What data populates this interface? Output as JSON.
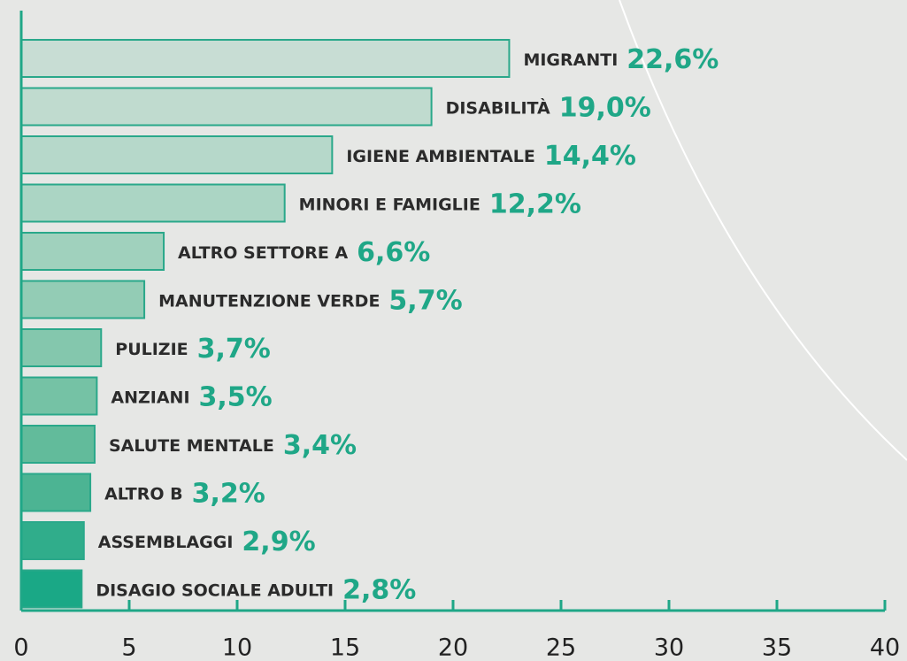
{
  "chart_data": {
    "type": "bar",
    "orientation": "horizontal",
    "categories": [
      "MIGRANTI",
      "DISABILITÀ",
      "IGIENE AMBIENTALE",
      "MINORI E FAMIGLIE",
      "ALTRO SETTORE A",
      "MANUTENZIONE VERDE",
      "PULIZIE",
      "ANZIANI",
      "SALUTE MENTALE",
      "ALTRO B",
      "ASSEMBLAGGI",
      "DISAGIO SOCIALE ADULTI"
    ],
    "values": [
      22.6,
      19.0,
      14.4,
      12.2,
      6.6,
      5.7,
      3.7,
      3.5,
      3.4,
      3.2,
      2.9,
      2.8
    ],
    "value_labels": [
      "22,6%",
      "19,0%",
      "14,4%",
      "12,2%",
      "6,6%",
      "5,7%",
      "3,7%",
      "3,5%",
      "3,4%",
      "3,2%",
      "2,9%",
      "2,8%"
    ],
    "colors": [
      "#c8ddd4",
      "#c0dbcf",
      "#b6d8ca",
      "#abd5c4",
      "#a0d1bd",
      "#93ccb5",
      "#84c7ad",
      "#75c2a5",
      "#62bb9b",
      "#4cb493",
      "#30ad8b",
      "#1aa886"
    ],
    "xlim": [
      0,
      40
    ],
    "xticks": [
      0,
      5,
      10,
      15,
      20,
      25,
      30,
      35,
      40
    ]
  }
}
